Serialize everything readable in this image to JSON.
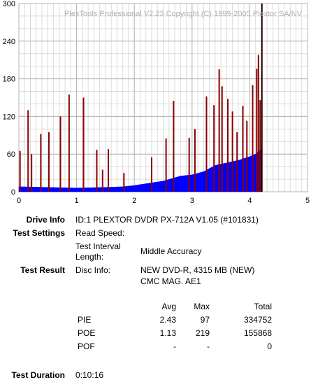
{
  "chart_data": {
    "type": "bar",
    "watermark": "PlexTools Professional V2.23 Copyright (C) 1999-2005 Plextor SA/NV",
    "xlim": [
      0,
      5
    ],
    "ylim": [
      0,
      300
    ],
    "x_ticks": [
      0,
      1,
      2,
      3,
      4,
      5
    ],
    "y_ticks": [
      0,
      60,
      120,
      180,
      240,
      300
    ],
    "grid": "on",
    "end_marker_x": 4.21,
    "series": [
      {
        "color": "#0000ff",
        "style": "filled-area",
        "x": [
          0.0,
          0.5,
          1.0,
          1.5,
          1.8,
          2.0,
          2.5,
          2.8,
          3.0,
          3.2,
          3.4,
          3.6,
          3.8,
          4.0,
          4.1,
          4.2,
          4.21
        ],
        "y": [
          8,
          7,
          6,
          7,
          8,
          10,
          17,
          25,
          27,
          32,
          42,
          46,
          50,
          56,
          60,
          68,
          0
        ]
      },
      {
        "color": "#8b0000",
        "style": "spikes",
        "x": [
          0.02,
          0.16,
          0.22,
          0.38,
          0.52,
          0.72,
          0.87,
          1.12,
          1.35,
          1.45,
          1.55,
          1.82,
          2.3,
          2.55,
          2.68,
          2.95,
          3.05,
          3.25,
          3.38,
          3.47,
          3.52,
          3.62,
          3.7,
          3.78,
          3.88,
          3.95,
          4.05,
          4.12,
          4.15,
          4.18,
          4.21
        ],
        "y": [
          65,
          130,
          60,
          92,
          95,
          120,
          155,
          150,
          67,
          35,
          68,
          30,
          55,
          85,
          145,
          86,
          100,
          152,
          138,
          195,
          168,
          148,
          128,
          95,
          137,
          113,
          170,
          196,
          218,
          146,
          300
        ]
      }
    ]
  },
  "info": {
    "drive_info_label": "Drive Info",
    "drive_info_value": "ID:1 PLEXTOR DVDR PX-712A V1.05 (#101831)",
    "test_settings_label": "Test Settings",
    "read_speed_label": "Read Speed:",
    "test_interval_label_1": "Test Interval",
    "test_interval_label_2": "Length:",
    "test_interval_value": "Middle Accuracy",
    "test_result_label": "Test Result",
    "disc_info_label": "Disc Info:",
    "disc_info_value_1": "NEW DVD-R, 4315 MB (NEW)",
    "disc_info_value_2": "CMC MAG. AE1",
    "test_duration_label": "Test Duration",
    "test_duration_value": "0:10:16"
  },
  "stats": {
    "headers": {
      "avg": "Avg",
      "max": "Max",
      "total": "Total"
    },
    "rows": [
      {
        "name": "PIE",
        "avg": "2.43",
        "max": "97",
        "total": "334752"
      },
      {
        "name": "POE",
        "avg": "1.13",
        "max": "219",
        "total": "155868"
      },
      {
        "name": "POF",
        "avg": "-",
        "max": "-",
        "total": "0"
      }
    ]
  }
}
